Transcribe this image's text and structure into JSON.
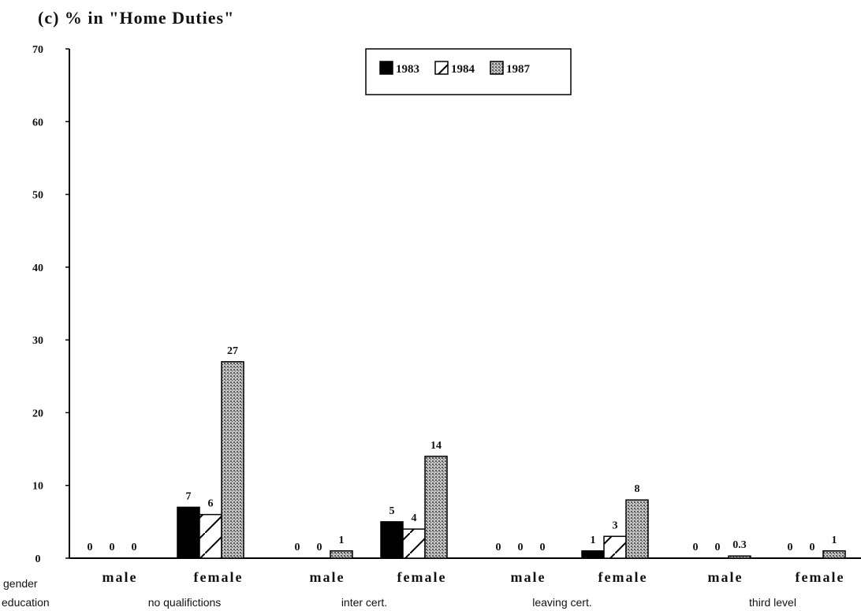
{
  "title": "(c)  %  in  \"Home  Duties\"",
  "colors": {
    "1983": "#000000",
    "1984": "#ffffff",
    "1987": "#a8a8a8"
  },
  "chart_data": {
    "type": "bar",
    "ylim": [
      0,
      70
    ],
    "yticks": [
      0,
      10,
      20,
      30,
      40,
      50,
      60,
      70
    ],
    "legend_position": "top-center",
    "row_labels": {
      "gender": "gender",
      "education": "education"
    },
    "groups": [
      {
        "education": "no qualifictions",
        "gender": "male",
        "values": [
          0,
          0,
          0
        ],
        "labels": [
          "0",
          "0",
          "0"
        ]
      },
      {
        "education": "no qualifictions",
        "gender": "female",
        "values": [
          7,
          6,
          27
        ],
        "labels": [
          "7",
          "6",
          "27"
        ]
      },
      {
        "education": "inter cert.",
        "gender": "male",
        "values": [
          0,
          0,
          1
        ],
        "labels": [
          "0",
          "0",
          "1"
        ]
      },
      {
        "education": "inter cert.",
        "gender": "female",
        "values": [
          5,
          4,
          14
        ],
        "labels": [
          "5",
          "4",
          "14"
        ]
      },
      {
        "education": "leaving cert.",
        "gender": "male",
        "values": [
          0,
          0,
          0
        ],
        "labels": [
          "0",
          "0",
          "0"
        ]
      },
      {
        "education": "leaving cert.",
        "gender": "female",
        "values": [
          1,
          3,
          8
        ],
        "labels": [
          "1",
          "3",
          "8"
        ]
      },
      {
        "education": "third level",
        "gender": "male",
        "values": [
          0,
          0,
          0.3
        ],
        "labels": [
          "0",
          "0",
          "0.3"
        ]
      },
      {
        "education": "third level",
        "gender": "female",
        "values": [
          0,
          0,
          1
        ],
        "labels": [
          "0",
          "0",
          "1"
        ]
      }
    ],
    "education_levels": [
      "no qualifictions",
      "inter cert.",
      "leaving cert.",
      "third level"
    ],
    "series": [
      {
        "name": "1983"
      },
      {
        "name": "1984"
      },
      {
        "name": "1987"
      }
    ]
  }
}
